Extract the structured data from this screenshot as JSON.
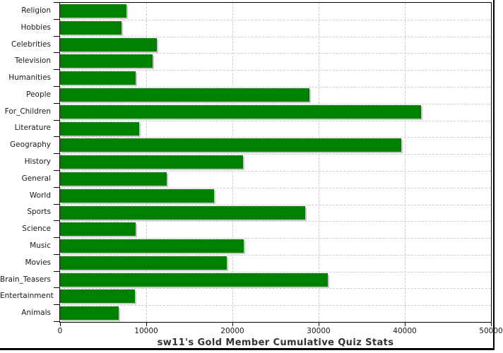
{
  "title": "sw11's Gold Member Cumulative Quiz Stats",
  "chart_data": {
    "type": "bar",
    "orientation": "horizontal",
    "title": "sw11's Gold Member Cumulative Quiz Stats",
    "categories": [
      "Religion",
      "Hobbies",
      "Celebrities",
      "Television",
      "Humanities",
      "People",
      "For_Children",
      "Literature",
      "Geography",
      "History",
      "General",
      "World",
      "Sports",
      "Science",
      "Music",
      "Movies",
      "Brain_Teasers",
      "Entertainment",
      "Animals"
    ],
    "values": [
      7700,
      7100,
      11200,
      10700,
      8800,
      28900,
      41900,
      9200,
      39600,
      21200,
      12400,
      17900,
      28400,
      8800,
      21300,
      19300,
      31100,
      8700,
      6800
    ],
    "xlabel": "",
    "ylabel": "",
    "xlim": [
      0,
      50000
    ],
    "x_ticks": [
      0,
      10000,
      20000,
      30000,
      40000,
      50000
    ],
    "x_tick_labels": [
      "0",
      "10000",
      "20000",
      "30000",
      "40000",
      "50000"
    ],
    "grid": "dashed",
    "legend": "none",
    "bar_color": "#008000",
    "bar_shadow_color": "#c9c9c9",
    "gridline_color": "#cccccc",
    "axis_color": "#000000",
    "frame_color": "#000000",
    "background_color": "#ffffff"
  }
}
